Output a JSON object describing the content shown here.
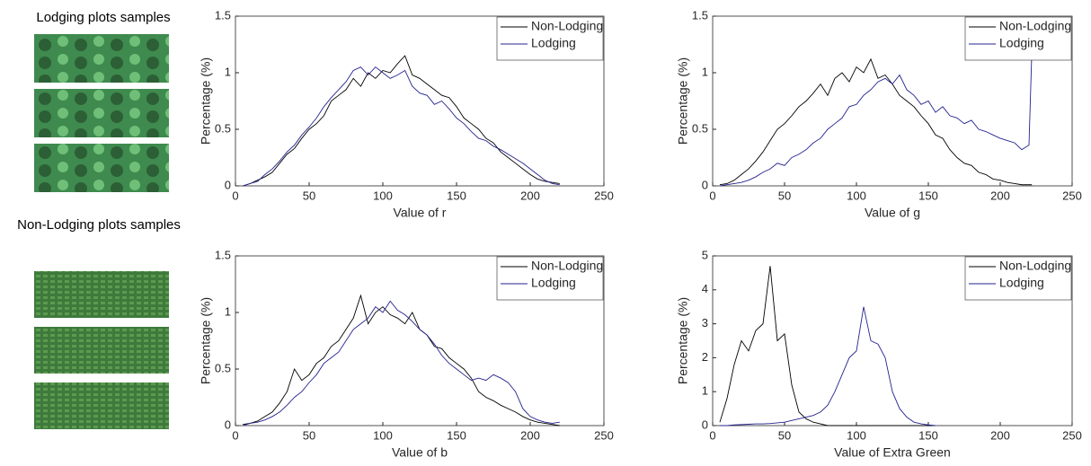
{
  "image_labels": [
    "Lodging plots samples",
    "Non-Lodging plots samples"
  ],
  "chart_data": [
    {
      "type": "line",
      "xlabel": "Value of r",
      "ylabel": "Percentage (%)",
      "legend": "upper right",
      "xlim": [
        0,
        250
      ],
      "ylim": [
        0,
        1.5
      ],
      "xticks": [
        0,
        50,
        100,
        150,
        200,
        250
      ],
      "yticks": [
        0,
        0.5,
        1,
        1.5
      ],
      "x": [
        5,
        10,
        15,
        20,
        25,
        30,
        35,
        40,
        45,
        50,
        55,
        60,
        65,
        70,
        75,
        80,
        85,
        90,
        95,
        100,
        105,
        110,
        115,
        120,
        125,
        130,
        135,
        140,
        145,
        150,
        155,
        160,
        165,
        170,
        175,
        180,
        185,
        190,
        195,
        200,
        205,
        210,
        215,
        220
      ],
      "series": [
        {
          "name": "Non-Lodging",
          "color": "#000000",
          "values": [
            0.0,
            0.02,
            0.05,
            0.08,
            0.12,
            0.2,
            0.28,
            0.33,
            0.42,
            0.5,
            0.55,
            0.62,
            0.75,
            0.8,
            0.85,
            0.95,
            0.88,
            1.0,
            0.95,
            1.02,
            1.0,
            1.08,
            1.15,
            0.98,
            0.95,
            0.9,
            0.85,
            0.8,
            0.78,
            0.7,
            0.6,
            0.55,
            0.5,
            0.42,
            0.38,
            0.3,
            0.25,
            0.2,
            0.15,
            0.1,
            0.06,
            0.04,
            0.03,
            0.02
          ]
        },
        {
          "name": "Lodging",
          "color": "#23238e",
          "values": [
            0.0,
            0.02,
            0.04,
            0.1,
            0.15,
            0.22,
            0.3,
            0.36,
            0.45,
            0.52,
            0.6,
            0.7,
            0.78,
            0.85,
            0.92,
            1.02,
            1.05,
            0.98,
            1.05,
            1.0,
            0.95,
            0.98,
            1.02,
            0.88,
            0.82,
            0.8,
            0.72,
            0.75,
            0.68,
            0.6,
            0.55,
            0.48,
            0.42,
            0.4,
            0.35,
            0.32,
            0.28,
            0.24,
            0.2,
            0.15,
            0.1,
            0.05,
            0.02,
            0.01
          ]
        }
      ]
    },
    {
      "type": "line",
      "xlabel": "Value of g",
      "ylabel": "Percentage (%)",
      "legend": "upper right",
      "xlim": [
        0,
        250
      ],
      "ylim": [
        0,
        1.5
      ],
      "xticks": [
        0,
        50,
        100,
        150,
        200,
        250
      ],
      "yticks": [
        0,
        0.5,
        1,
        1.5
      ],
      "x": [
        5,
        10,
        15,
        20,
        25,
        30,
        35,
        40,
        45,
        50,
        55,
        60,
        65,
        70,
        75,
        80,
        85,
        90,
        95,
        100,
        105,
        110,
        115,
        120,
        125,
        130,
        135,
        140,
        145,
        150,
        155,
        160,
        165,
        170,
        175,
        180,
        185,
        190,
        195,
        200,
        205,
        210,
        215,
        220,
        222
      ],
      "series": [
        {
          "name": "Non-Lodging",
          "color": "#000000",
          "values": [
            0.01,
            0.02,
            0.05,
            0.1,
            0.15,
            0.22,
            0.3,
            0.4,
            0.5,
            0.55,
            0.62,
            0.7,
            0.75,
            0.82,
            0.9,
            0.8,
            0.95,
            1.0,
            0.92,
            1.05,
            1.0,
            1.12,
            0.95,
            0.98,
            0.9,
            0.8,
            0.75,
            0.7,
            0.62,
            0.55,
            0.45,
            0.42,
            0.32,
            0.25,
            0.2,
            0.18,
            0.12,
            0.1,
            0.06,
            0.05,
            0.03,
            0.02,
            0.01,
            0.01,
            0.01
          ]
        },
        {
          "name": "Lodging",
          "color": "#23238e",
          "values": [
            0.0,
            0.01,
            0.02,
            0.03,
            0.05,
            0.08,
            0.12,
            0.15,
            0.2,
            0.18,
            0.25,
            0.28,
            0.32,
            0.38,
            0.42,
            0.5,
            0.55,
            0.6,
            0.7,
            0.72,
            0.8,
            0.85,
            0.92,
            0.95,
            0.9,
            0.98,
            0.85,
            0.8,
            0.72,
            0.75,
            0.65,
            0.7,
            0.62,
            0.6,
            0.55,
            0.58,
            0.5,
            0.48,
            0.45,
            0.42,
            0.4,
            0.38,
            0.32,
            0.36,
            1.2
          ]
        }
      ]
    },
    {
      "type": "line",
      "xlabel": "Value of b",
      "ylabel": "Percentage (%)",
      "legend": "upper right",
      "xlim": [
        0,
        250
      ],
      "ylim": [
        0,
        1.5
      ],
      "xticks": [
        0,
        50,
        100,
        150,
        200,
        250
      ],
      "yticks": [
        0,
        0.5,
        1,
        1.5
      ],
      "x": [
        5,
        10,
        15,
        20,
        25,
        30,
        35,
        40,
        45,
        50,
        55,
        60,
        65,
        70,
        75,
        80,
        85,
        90,
        95,
        100,
        105,
        110,
        115,
        120,
        125,
        130,
        135,
        140,
        145,
        150,
        155,
        160,
        165,
        170,
        175,
        180,
        185,
        190,
        195,
        200,
        205,
        210,
        215,
        220
      ],
      "series": [
        {
          "name": "Non-Lodging",
          "color": "#000000",
          "values": [
            0.01,
            0.02,
            0.04,
            0.08,
            0.12,
            0.2,
            0.3,
            0.5,
            0.4,
            0.45,
            0.55,
            0.6,
            0.7,
            0.75,
            0.85,
            0.95,
            1.15,
            0.9,
            1.0,
            1.05,
            0.98,
            0.95,
            0.9,
            1.0,
            0.85,
            0.8,
            0.7,
            0.68,
            0.6,
            0.55,
            0.5,
            0.42,
            0.3,
            0.25,
            0.22,
            0.18,
            0.15,
            0.12,
            0.08,
            0.05,
            0.03,
            0.02,
            0.01,
            0.0
          ]
        },
        {
          "name": "Lodging",
          "color": "#23238e",
          "values": [
            0.0,
            0.02,
            0.03,
            0.05,
            0.08,
            0.12,
            0.18,
            0.25,
            0.3,
            0.38,
            0.45,
            0.55,
            0.6,
            0.65,
            0.75,
            0.85,
            0.9,
            0.95,
            1.05,
            1.0,
            1.1,
            1.02,
            0.98,
            0.92,
            0.85,
            0.8,
            0.72,
            0.62,
            0.55,
            0.5,
            0.45,
            0.4,
            0.42,
            0.4,
            0.45,
            0.42,
            0.38,
            0.3,
            0.15,
            0.08,
            0.05,
            0.03,
            0.02,
            0.03
          ]
        }
      ]
    },
    {
      "type": "line",
      "xlabel": "Value of Extra Green",
      "ylabel": "Percentage (%)",
      "legend": "upper right",
      "xlim": [
        0,
        250
      ],
      "ylim": [
        0,
        5
      ],
      "xticks": [
        0,
        50,
        100,
        150,
        200,
        250
      ],
      "yticks": [
        0,
        1,
        2,
        3,
        4,
        5
      ],
      "x": [
        5,
        10,
        15,
        20,
        25,
        30,
        35,
        40,
        45,
        50,
        55,
        60,
        65,
        70,
        75,
        80,
        85,
        90,
        95,
        100,
        105,
        110,
        115,
        120,
        125,
        130,
        135,
        140,
        145,
        150,
        155
      ],
      "series": [
        {
          "name": "Non-Lodging",
          "color": "#000000",
          "values": [
            0.1,
            0.8,
            1.8,
            2.5,
            2.2,
            2.8,
            3.0,
            4.7,
            2.5,
            2.7,
            1.2,
            0.4,
            0.2,
            0.1,
            0.05,
            0,
            0,
            0,
            0,
            0,
            0,
            0,
            0,
            0,
            0,
            0,
            0,
            0,
            0,
            0,
            0
          ]
        },
        {
          "name": "Lodging",
          "color": "#23238e",
          "values": [
            0.0,
            0.0,
            0.02,
            0.03,
            0.04,
            0.05,
            0.05,
            0.06,
            0.08,
            0.1,
            0.15,
            0.2,
            0.25,
            0.3,
            0.4,
            0.6,
            1.0,
            1.5,
            2.0,
            2.2,
            3.5,
            2.5,
            2.4,
            2.0,
            1.0,
            0.5,
            0.25,
            0.1,
            0.05,
            0.02,
            0.0
          ]
        }
      ]
    }
  ]
}
